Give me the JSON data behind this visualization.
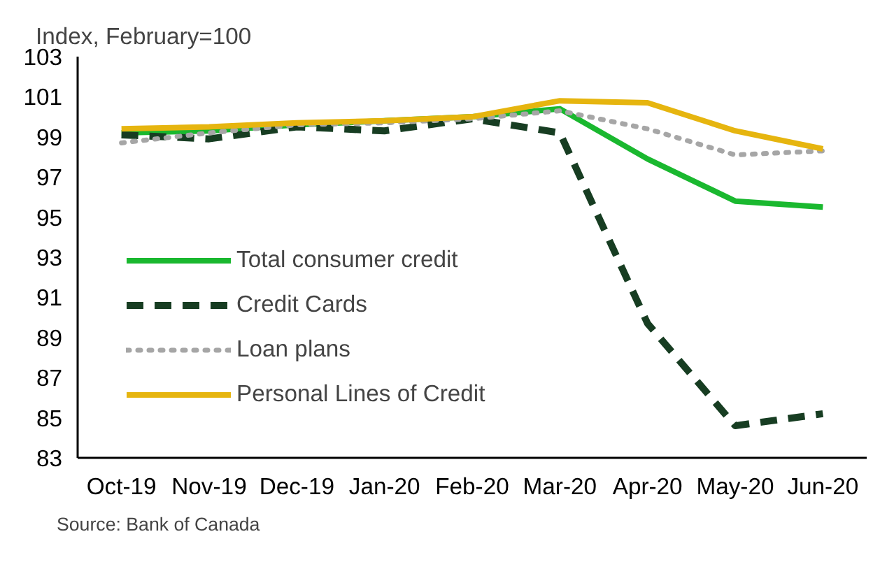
{
  "chart_data": {
    "type": "line",
    "ylabel": "Index, February=100",
    "categories": [
      "Oct-19",
      "Nov-19",
      "Dec-19",
      "Jan-20",
      "Feb-20",
      "Mar-20",
      "Apr-20",
      "May-20",
      "Jun-20"
    ],
    "series": [
      {
        "name": "Total consumer credit",
        "color": "#1ab82f",
        "line_style": "solid",
        "values": [
          99.2,
          99.3,
          99.6,
          99.8,
          100.0,
          100.4,
          97.9,
          95.8,
          95.5
        ]
      },
      {
        "name": "Credit Cards",
        "color": "#173d22",
        "line_style": "dashed",
        "values": [
          99.1,
          98.9,
          99.5,
          99.3,
          99.9,
          99.2,
          89.7,
          84.6,
          85.2
        ]
      },
      {
        "name": "Loan plans",
        "color": "#a6a6a6",
        "line_style": "dotted",
        "values": [
          98.7,
          99.2,
          99.6,
          99.7,
          99.9,
          100.3,
          99.4,
          98.1,
          98.3
        ]
      },
      {
        "name": "Personal Lines of Credit",
        "color": "#e6b50f",
        "line_style": "solid",
        "values": [
          99.4,
          99.5,
          99.7,
          99.8,
          100.0,
          100.8,
          100.7,
          99.3,
          98.4
        ]
      }
    ],
    "ylim": [
      83,
      103
    ],
    "yticks": [
      83,
      85,
      87,
      89,
      91,
      93,
      95,
      97,
      99,
      101,
      103
    ],
    "grid": false,
    "legend": "bottom left",
    "annotations": [
      "Source: Bank of Canada"
    ]
  }
}
